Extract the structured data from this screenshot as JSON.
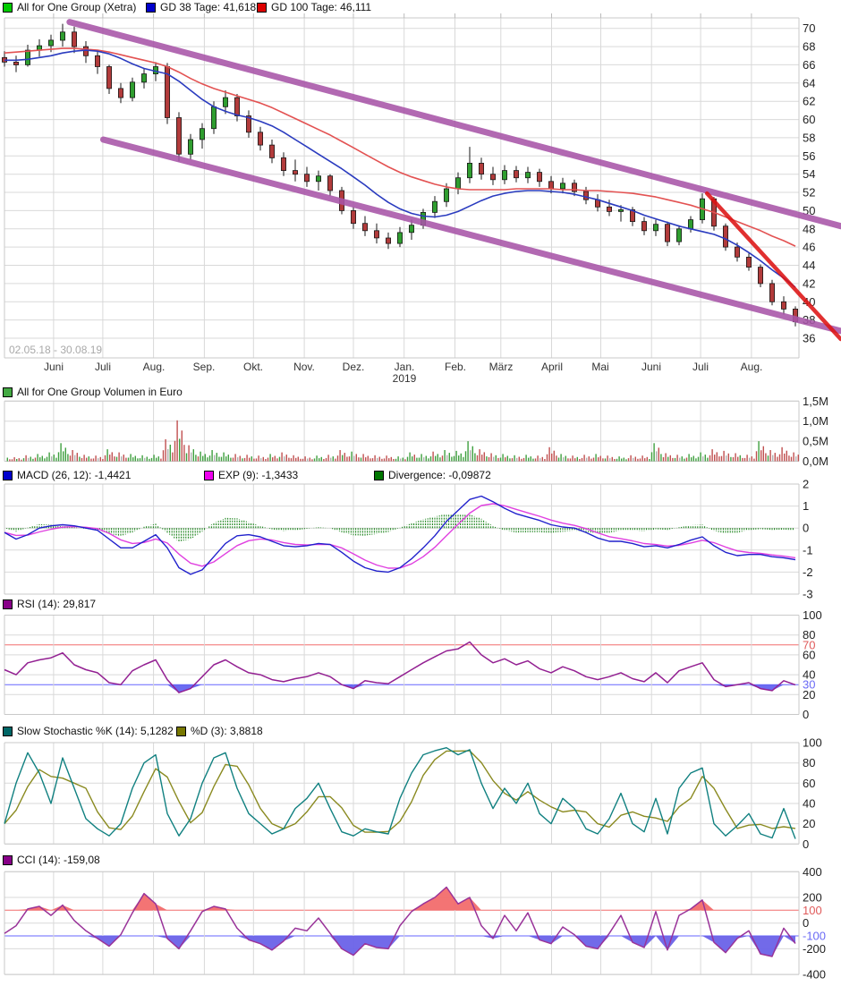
{
  "date_range": "02.05.18 - 30.08.19",
  "x_axis": {
    "months": [
      "Juni",
      "Juli",
      "Aug.",
      "Sep.",
      "Okt.",
      "Nov.",
      "Dez.",
      "Jan.",
      "Feb.",
      "März",
      "April",
      "Mai",
      "Juni",
      "Juli",
      "Aug."
    ],
    "year": "2019",
    "year_under_month_index": 7
  },
  "colors": {
    "grid": "#d9d9d9",
    "border": "#c9c9c9",
    "tick_text": "#222222",
    "tick_red": "#e05a5a",
    "tick_blue": "#6a6af5",
    "candle_up": "#2f9e2f",
    "candle_down": "#b23b3b",
    "candle_outline": "#1a1a1a",
    "gd38_line": "#2a3bbf",
    "gd100_line": "#e35252",
    "channel_purple": "#a855a8",
    "trend_red": "#dd1414",
    "vol_up": "#3fa03f",
    "vol_down": "#c05050",
    "vol_neutral": "#b0b0b0",
    "macd_line": "#2020cc",
    "macd_signal": "#e040e0",
    "macd_hist": "#0a7a0a",
    "rsi_line": "#932092",
    "rsi_fill": "#5c5cf0",
    "hline_red": "#f26d6d",
    "hline_blue": "#6666ff",
    "stoch_k": "#108080",
    "stoch_d": "#8a8a20",
    "cci_line": "#993399",
    "cci_fill_high": "#f26d6d",
    "cci_fill_low": "#6a62e8"
  },
  "chart_data": [
    {
      "type": "candlestick",
      "name": "price",
      "legend": [
        {
          "color": "#00cc00",
          "text": "All for One Group (Xetra)"
        },
        {
          "color": "#0000cc",
          "text": "GD 38 Tage: 41,618"
        },
        {
          "color": "#dd0000",
          "text": "GD 100 Tage: 46,111"
        }
      ],
      "ylim": [
        36,
        70
      ],
      "yticks": [
        70,
        68,
        66,
        64,
        62,
        60,
        58,
        56,
        54,
        52,
        50,
        48,
        46,
        44,
        42,
        40,
        38,
        36
      ],
      "candles_ohlc": [
        [
          66.8,
          67.5,
          65.8,
          66.3
        ],
        [
          66.3,
          67.0,
          65.2,
          66.0
        ],
        [
          66.0,
          68.2,
          65.8,
          67.6
        ],
        [
          67.6,
          68.8,
          66.9,
          68.1
        ],
        [
          68.1,
          69.3,
          67.4,
          68.7
        ],
        [
          68.7,
          70.5,
          68.0,
          69.6
        ],
        [
          69.6,
          70.2,
          67.3,
          68.0
        ],
        [
          68.0,
          68.6,
          66.2,
          67.0
        ],
        [
          67.0,
          67.5,
          65.0,
          65.8
        ],
        [
          65.8,
          66.0,
          62.8,
          63.4
        ],
        [
          63.4,
          64.0,
          61.8,
          62.4
        ],
        [
          62.4,
          64.6,
          62.0,
          64.1
        ],
        [
          64.1,
          65.6,
          63.4,
          65.0
        ],
        [
          65.0,
          66.3,
          64.2,
          65.8
        ],
        [
          65.8,
          66.2,
          59.5,
          60.2
        ],
        [
          60.2,
          60.8,
          55.4,
          56.2
        ],
        [
          56.2,
          58.4,
          55.6,
          57.8
        ],
        [
          57.8,
          59.6,
          56.8,
          59.0
        ],
        [
          59.0,
          62.0,
          58.4,
          61.4
        ],
        [
          61.4,
          63.2,
          60.6,
          62.4
        ],
        [
          62.4,
          62.8,
          59.8,
          60.4
        ],
        [
          60.4,
          61.0,
          58.0,
          58.6
        ],
        [
          58.6,
          59.2,
          56.6,
          57.2
        ],
        [
          57.2,
          57.8,
          55.2,
          55.8
        ],
        [
          55.8,
          56.4,
          53.8,
          54.4
        ],
        [
          54.4,
          55.6,
          53.2,
          54.0
        ],
        [
          54.0,
          54.8,
          52.6,
          53.2
        ],
        [
          53.2,
          54.4,
          52.2,
          53.8
        ],
        [
          53.8,
          54.0,
          51.6,
          52.2
        ],
        [
          52.2,
          52.6,
          49.6,
          50.0
        ],
        [
          50.0,
          50.4,
          48.0,
          48.6
        ],
        [
          48.6,
          49.4,
          47.2,
          47.8
        ],
        [
          47.8,
          48.6,
          46.4,
          47.0
        ],
        [
          47.0,
          47.6,
          45.8,
          46.4
        ],
        [
          46.4,
          48.2,
          46.0,
          47.6
        ],
        [
          47.6,
          49.0,
          46.8,
          48.4
        ],
        [
          48.4,
          50.2,
          48.0,
          49.8
        ],
        [
          49.8,
          51.6,
          49.2,
          51.0
        ],
        [
          51.0,
          53.0,
          50.4,
          52.4
        ],
        [
          52.4,
          54.2,
          51.8,
          53.6
        ],
        [
          53.6,
          57.0,
          53.0,
          55.2
        ],
        [
          55.2,
          55.8,
          53.4,
          54.0
        ],
        [
          54.0,
          54.8,
          52.8,
          53.4
        ],
        [
          53.4,
          55.0,
          52.9,
          54.4
        ],
        [
          54.4,
          54.9,
          53.1,
          53.6
        ],
        [
          53.6,
          54.8,
          53.0,
          54.2
        ],
        [
          54.2,
          54.6,
          52.6,
          53.2
        ],
        [
          53.2,
          53.8,
          51.9,
          52.4
        ],
        [
          52.4,
          53.6,
          51.9,
          53.0
        ],
        [
          53.0,
          53.4,
          51.6,
          52.1
        ],
        [
          52.1,
          52.6,
          50.7,
          51.2
        ],
        [
          51.2,
          51.8,
          49.9,
          50.4
        ],
        [
          50.4,
          51.2,
          49.4,
          49.9
        ],
        [
          49.9,
          50.6,
          48.8,
          50.1
        ],
        [
          50.1,
          50.4,
          48.3,
          48.8
        ],
        [
          48.8,
          49.3,
          47.3,
          47.8
        ],
        [
          47.8,
          49.0,
          47.2,
          48.5
        ],
        [
          48.5,
          48.8,
          46.1,
          46.6
        ],
        [
          46.6,
          48.4,
          46.2,
          48.0
        ],
        [
          48.0,
          49.4,
          47.6,
          49.0
        ],
        [
          49.0,
          51.9,
          48.6,
          51.3
        ],
        [
          51.3,
          51.5,
          47.8,
          48.3
        ],
        [
          48.3,
          48.6,
          45.6,
          46.0
        ],
        [
          46.0,
          46.5,
          44.4,
          44.9
        ],
        [
          44.9,
          45.3,
          43.4,
          43.8
        ],
        [
          43.8,
          44.1,
          41.6,
          42.0
        ],
        [
          42.0,
          42.4,
          39.6,
          40.0
        ],
        [
          40.0,
          40.6,
          38.6,
          39.2
        ],
        [
          39.2,
          39.5,
          37.3,
          37.8
        ]
      ],
      "gd38": [
        66.5,
        66.5,
        66.6,
        66.8,
        67.0,
        67.3,
        67.5,
        67.6,
        67.5,
        67.2,
        66.7,
        66.1,
        65.6,
        65.3,
        65.0,
        64.2,
        63.2,
        62.2,
        61.4,
        60.9,
        60.5,
        60.2,
        59.8,
        59.3,
        58.6,
        57.8,
        57.0,
        56.2,
        55.4,
        54.6,
        53.7,
        52.8,
        51.8,
        50.9,
        50.2,
        49.7,
        49.4,
        49.3,
        49.5,
        49.9,
        50.5,
        51.1,
        51.6,
        51.9,
        52.1,
        52.2,
        52.2,
        52.1,
        52.0,
        51.8,
        51.5,
        51.2,
        50.8,
        50.4,
        50.0,
        49.5,
        49.1,
        48.7,
        48.3,
        48.0,
        47.7,
        47.4,
        46.9,
        46.2,
        45.4,
        44.5,
        43.5,
        42.6,
        41.6
      ],
      "gd100": [
        67.3,
        67.4,
        67.5,
        67.6,
        67.7,
        67.8,
        67.8,
        67.7,
        67.6,
        67.4,
        67.1,
        66.8,
        66.5,
        66.2,
        65.8,
        65.2,
        64.5,
        63.9,
        63.4,
        63.0,
        62.6,
        62.2,
        61.8,
        61.3,
        60.7,
        60.1,
        59.5,
        58.9,
        58.3,
        57.6,
        56.9,
        56.2,
        55.5,
        54.8,
        54.2,
        53.7,
        53.3,
        52.9,
        52.6,
        52.4,
        52.3,
        52.3,
        52.3,
        52.3,
        52.4,
        52.4,
        52.4,
        52.4,
        52.3,
        52.3,
        52.2,
        52.2,
        52.1,
        52.0,
        51.9,
        51.7,
        51.5,
        51.2,
        50.9,
        50.6,
        50.2,
        49.8,
        49.3,
        48.8,
        48.3,
        47.8,
        47.2,
        46.7,
        46.1
      ],
      "channel_upper": {
        "from_week": 5.6,
        "from_value": 70.7,
        "to_week": 71.9,
        "to_value": 48.3
      },
      "channel_lower": {
        "from_week": 8.5,
        "from_value": 57.8,
        "to_week": 71.9,
        "to_value": 36.8
      },
      "trendline_red": {
        "from_week": 60.4,
        "from_value": 51.9,
        "to_week": 71.9,
        "to_value": 35.9
      }
    },
    {
      "type": "bar",
      "name": "volume",
      "legend": [
        {
          "color": "#44aa44",
          "text": "All for One Group Volumen in Euro"
        }
      ],
      "ylim": [
        0,
        1.5
      ],
      "yticks": [
        {
          "v": 1.5,
          "label": "1,5M"
        },
        {
          "v": 1.0,
          "label": "1,0M"
        },
        {
          "v": 0.5,
          "label": "0,5M"
        },
        {
          "v": 0,
          "label": "0,0M"
        }
      ],
      "values_meur": [
        0.12,
        0.1,
        0.15,
        0.18,
        0.22,
        0.45,
        0.28,
        0.16,
        0.14,
        0.3,
        0.22,
        0.18,
        0.15,
        0.16,
        0.55,
        1.02,
        0.4,
        0.24,
        0.28,
        0.22,
        0.18,
        0.16,
        0.14,
        0.18,
        0.22,
        0.15,
        0.12,
        0.14,
        0.16,
        0.28,
        0.24,
        0.18,
        0.15,
        0.14,
        0.12,
        0.22,
        0.18,
        0.24,
        0.28,
        0.26,
        0.5,
        0.3,
        0.2,
        0.18,
        0.15,
        0.16,
        0.14,
        0.35,
        0.18,
        0.14,
        0.16,
        0.18,
        0.14,
        0.12,
        0.15,
        0.14,
        0.45,
        0.2,
        0.16,
        0.18,
        0.22,
        0.3,
        0.26,
        0.2,
        0.16,
        0.5,
        0.28,
        0.35,
        0.22
      ]
    },
    {
      "type": "line",
      "name": "macd",
      "legend": [
        {
          "color": "#0000cc",
          "text": "MACD (26, 12): -1,4421"
        },
        {
          "color": "#ee00ee",
          "text": "EXP (9): -1,3433"
        },
        {
          "color": "#007700",
          "text": "Divergence: -0,09872"
        }
      ],
      "ylim": [
        -3,
        2
      ],
      "yticks": [
        2,
        1,
        0,
        -1,
        -2,
        -3
      ],
      "macd": [
        -0.2,
        -0.5,
        -0.3,
        0,
        0.1,
        0.15,
        0.1,
        0,
        -0.1,
        -0.5,
        -0.9,
        -0.9,
        -0.6,
        -0.3,
        -0.9,
        -1.8,
        -2.1,
        -1.9,
        -1.3,
        -0.7,
        -0.35,
        -0.3,
        -0.4,
        -0.6,
        -0.8,
        -0.85,
        -0.8,
        -0.7,
        -0.75,
        -1.1,
        -1.5,
        -1.8,
        -1.95,
        -2.0,
        -1.8,
        -1.4,
        -0.9,
        -0.35,
        0.3,
        0.8,
        1.3,
        1.45,
        1.2,
        0.9,
        0.65,
        0.5,
        0.35,
        0.15,
        0.05,
        0,
        -0.2,
        -0.45,
        -0.6,
        -0.6,
        -0.7,
        -0.85,
        -0.8,
        -0.9,
        -0.75,
        -0.55,
        -0.4,
        -0.8,
        -1.1,
        -1.25,
        -1.2,
        -1.2,
        -1.3,
        -1.35,
        -1.44
      ],
      "signal_ema_alpha": 0.45
    },
    {
      "type": "line",
      "name": "rsi",
      "legend": [
        {
          "color": "#880088",
          "text": "RSI (14): 29,817"
        }
      ],
      "ylim": [
        0,
        100
      ],
      "yticks": [
        {
          "v": 100
        },
        {
          "v": 80
        },
        {
          "v": 70,
          "color": "red",
          "line": "red"
        },
        {
          "v": 60
        },
        {
          "v": 40
        },
        {
          "v": 30,
          "color": "blue",
          "line": "blue"
        },
        {
          "v": 20
        },
        {
          "v": 0
        }
      ],
      "oversold": 30,
      "overbought": 70,
      "values": [
        45,
        40,
        52,
        55,
        57,
        62,
        50,
        45,
        42,
        32,
        30,
        44,
        50,
        55,
        35,
        22,
        26,
        38,
        50,
        55,
        48,
        42,
        40,
        35,
        33,
        36,
        38,
        42,
        38,
        30,
        26,
        34,
        32,
        31,
        38,
        45,
        52,
        58,
        64,
        66,
        73,
        60,
        52,
        56,
        50,
        54,
        46,
        42,
        48,
        44,
        38,
        35,
        38,
        42,
        36,
        33,
        42,
        32,
        44,
        48,
        52,
        35,
        28,
        30,
        32,
        26,
        24,
        34,
        29.8
      ]
    },
    {
      "type": "line",
      "name": "stochastic",
      "legend": [
        {
          "color": "#006666",
          "text": "Slow Stochastic %K (14): 5,1282"
        },
        {
          "color": "#777700",
          "text": "%D (3): 3,8818"
        }
      ],
      "ylim": [
        0,
        100
      ],
      "yticks": [
        100,
        80,
        60,
        40,
        20,
        0
      ],
      "k_values": [
        20,
        60,
        90,
        70,
        40,
        85,
        55,
        25,
        15,
        8,
        20,
        55,
        80,
        88,
        30,
        8,
        25,
        60,
        85,
        90,
        55,
        30,
        20,
        10,
        15,
        35,
        45,
        60,
        35,
        12,
        8,
        15,
        12,
        10,
        45,
        70,
        88,
        92,
        95,
        88,
        93,
        60,
        35,
        55,
        40,
        60,
        30,
        20,
        45,
        35,
        15,
        10,
        25,
        50,
        20,
        12,
        45,
        10,
        55,
        70,
        75,
        20,
        8,
        18,
        30,
        10,
        6,
        35,
        5.1
      ],
      "d_period": 3
    },
    {
      "type": "line",
      "name": "cci",
      "legend": [
        {
          "color": "#880088",
          "text": "CCI (14): -159,08"
        }
      ],
      "ylim": [
        -400,
        400
      ],
      "yticks": [
        {
          "v": 400
        },
        {
          "v": 200
        },
        {
          "v": 100,
          "color": "red",
          "line": "red"
        },
        {
          "v": 0
        },
        {
          "v": -100,
          "color": "blue",
          "line": "blue"
        },
        {
          "v": -200
        },
        {
          "v": -400
        }
      ],
      "upper_band": 100,
      "lower_band": -100,
      "values": [
        -80,
        -20,
        110,
        130,
        60,
        140,
        20,
        -60,
        -120,
        -180,
        -90,
        80,
        230,
        150,
        -120,
        -200,
        -60,
        90,
        130,
        110,
        -40,
        -130,
        -160,
        -210,
        -140,
        -40,
        -60,
        40,
        -80,
        -200,
        -250,
        -160,
        -190,
        -200,
        -20,
        90,
        150,
        200,
        280,
        150,
        200,
        -20,
        -120,
        60,
        -60,
        80,
        -130,
        -160,
        -30,
        -90,
        -180,
        -200,
        -80,
        60,
        -150,
        -190,
        90,
        -210,
        60,
        110,
        180,
        -150,
        -230,
        -120,
        -60,
        -240,
        -260,
        -40,
        -159
      ]
    }
  ]
}
